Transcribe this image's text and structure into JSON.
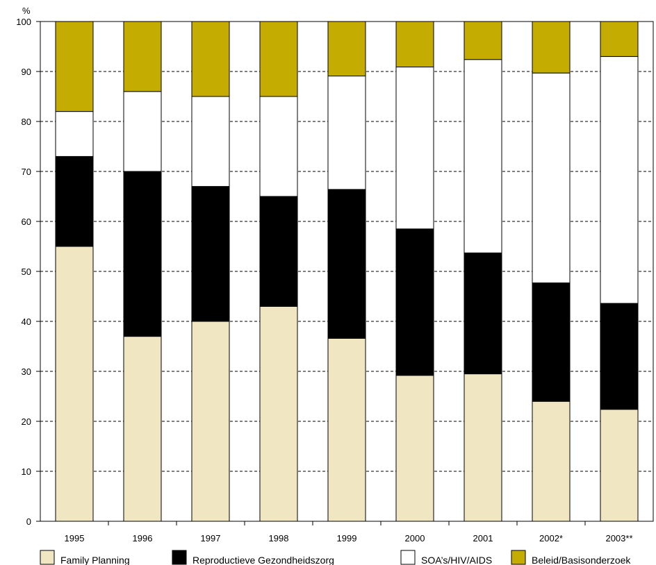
{
  "chart_data": {
    "type": "bar",
    "stacked": true,
    "ylabel": "%",
    "ylim": [
      0,
      100
    ],
    "yticks": [
      0,
      10,
      20,
      30,
      40,
      50,
      60,
      70,
      80,
      90,
      100
    ],
    "grid": "horizontal dashed",
    "legend_position": "bottom",
    "categories": [
      "1995",
      "1996",
      "1997",
      "1998",
      "1999",
      "2000",
      "2001",
      "2002*",
      "2003**"
    ],
    "series": [
      {
        "name": "Family Planning",
        "color": "#f0e6c2",
        "values": [
          55,
          37,
          40,
          43,
          36.6,
          29.2,
          29.5,
          24,
          22.4
        ]
      },
      {
        "name": "Reproductieve Gezondheidszorg",
        "color": "#000000",
        "values": [
          18,
          33,
          27,
          22,
          29.8,
          29.3,
          24.2,
          23.7,
          21.2
        ]
      },
      {
        "name": "SOA’s/HIV/AIDS",
        "color": "#ffffff",
        "values": [
          9,
          16,
          18,
          20,
          22.7,
          32.4,
          38.7,
          42,
          49.4
        ]
      },
      {
        "name": "Beleid/Basisonderzoek",
        "color": "#c4ad00",
        "values": [
          18,
          14,
          15,
          15,
          10.9,
          9.1,
          7.6,
          10.3,
          7
        ]
      }
    ]
  }
}
